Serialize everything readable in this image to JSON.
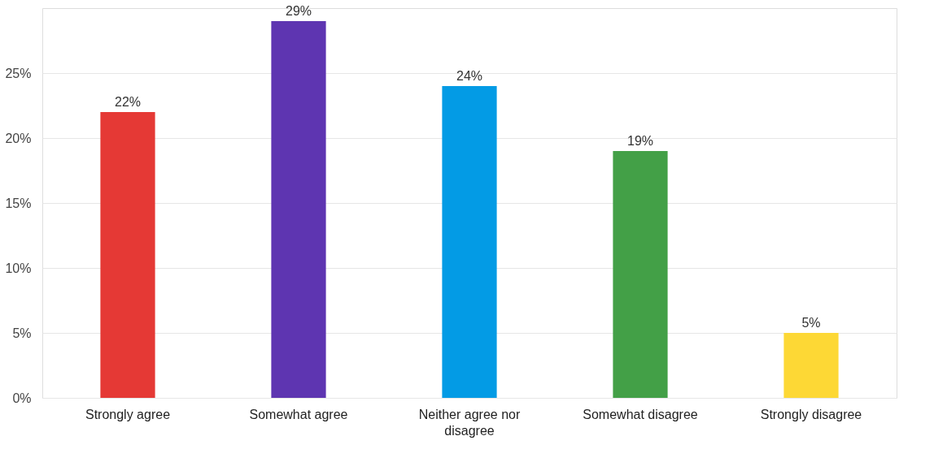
{
  "chart_data": {
    "type": "bar",
    "categories": [
      "Strongly agree",
      "Somewhat agree",
      "Neither agree nor disagree",
      "Somewhat disagree",
      "Strongly disagree"
    ],
    "values": [
      22,
      29,
      24,
      19,
      5
    ],
    "colors": [
      "#e53935",
      "#5e35b1",
      "#039be5",
      "#43a047",
      "#fdd835"
    ],
    "value_labels": [
      "22%",
      "29%",
      "24%",
      "19%",
      "5%"
    ],
    "ylim": [
      0,
      30
    ],
    "yticks": [
      {
        "value": 0,
        "label": "0%"
      },
      {
        "value": 5,
        "label": "5%"
      },
      {
        "value": 10,
        "label": "10%"
      },
      {
        "value": 15,
        "label": "15%"
      },
      {
        "value": 20,
        "label": "20%"
      },
      {
        "value": 25,
        "label": "25%"
      }
    ],
    "grid": "y"
  }
}
